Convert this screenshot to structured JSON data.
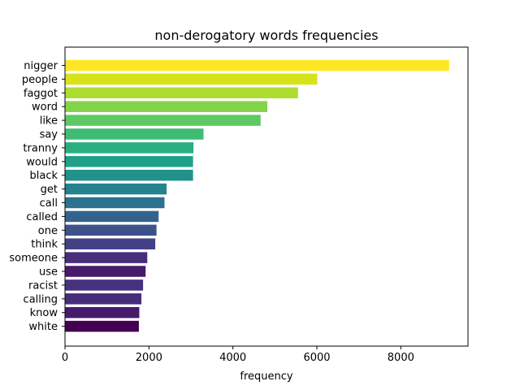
{
  "chart_data": {
    "type": "bar",
    "orientation": "horizontal",
    "title": "non-derogatory words frequencies",
    "xlabel": "frequency",
    "ylabel": "",
    "xlim": [
      0,
      9600
    ],
    "xticks": [
      0,
      2000,
      4000,
      6000,
      8000
    ],
    "grid": false,
    "legend": "none",
    "colormap": "viridis",
    "categories": [
      "nigger",
      "people",
      "faggot",
      "word",
      "like",
      "say",
      "tranny",
      "would",
      "black",
      "get",
      "call",
      "called",
      "one",
      "think",
      "someone",
      "use",
      "racist",
      "calling",
      "know",
      "white"
    ],
    "values": [
      9150,
      6010,
      5550,
      4820,
      4660,
      3300,
      3060,
      3050,
      3050,
      2420,
      2370,
      2230,
      2180,
      2150,
      1960,
      1920,
      1860,
      1820,
      1770,
      1760
    ],
    "colors": [
      "#fde725",
      "#d8e219",
      "#addc30",
      "#84d44b",
      "#5ec962",
      "#3fbc73",
      "#28ae80",
      "#1fa088",
      "#21918c",
      "#26828e",
      "#2c728e",
      "#33638d",
      "#3b528b",
      "#424086",
      "#472d7b",
      "#48186a",
      "#46327e",
      "#472d7b",
      "#481a6c",
      "#440154"
    ]
  }
}
